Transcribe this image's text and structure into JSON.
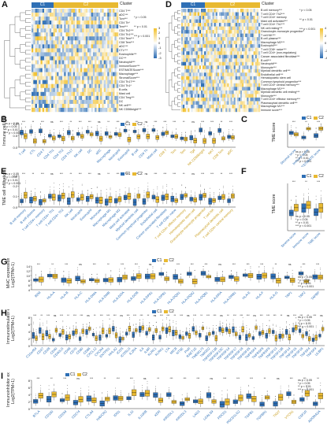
{
  "colors": {
    "C1": "#2e6fb5",
    "C2": "#e8b931",
    "heat_high": "#f2c12e",
    "heat_low": "#2b6cb3",
    "heat_mid": "#ffffff"
  },
  "legend": {
    "title": "",
    "items": [
      "C1",
      "C2"
    ]
  },
  "significance_key": [
    "* p < 0.05",
    "** p < 0.01",
    "*** p < 0.001"
  ],
  "significance_key_ns": [
    "ns p > 0.05",
    "* p < 0.05",
    "** p < 0.01",
    "*** p < 0.001"
  ],
  "panels": {
    "A": {
      "label": "A",
      "cluster_title": "Cluster",
      "cluster_labels": [
        "C1",
        "C2"
      ],
      "rows": [
        "CD4 T***",
        "aDC***",
        "Tcm***",
        "CD4 Th*",
        "Tem***",
        "CD4 Th2***",
        "CD4 Th1***",
        "CD4 Tem***",
        "CD8 Tem***",
        "aDC***",
        "CTL***",
        "Eosinophils***",
        "DC***",
        "Neutrophil***",
        "ImmuneScore***",
        "ESTIMATEScore***",
        "Macrophage***",
        "StromalScore***",
        "CD4 Th17***",
        "CD4 Th1*",
        "B cells",
        "Mast cell",
        "CD4 Treg***",
        "DC",
        "NK cell***",
        "NK CD56bright***"
      ],
      "scale": [
        "3",
        "2",
        "1",
        "0",
        "-1",
        "-2",
        "-3"
      ]
    },
    "B": {
      "label": "B",
      "ylabel": "Immune cell infiltration",
      "yticks": [
        "1.0",
        "0.5",
        "0.0"
      ],
      "categories": [
        "T cell",
        "CTL",
        "CD4 T",
        "CD4 Th1",
        "CD4 Th2",
        "CD4 Th17",
        "NK cell",
        "DC",
        "aDC",
        "Macrophage",
        "Neutrophil",
        "Eosinophil",
        "B cell",
        "CD4 Th",
        "Mast cell",
        "CD8 T",
        "Tcm",
        "Tem",
        "Tgd",
        "NK CD56bright",
        "NKT",
        "CD8 Tcm",
        "pDC"
      ],
      "highlight": [
        false,
        false,
        false,
        false,
        false,
        false,
        false,
        false,
        false,
        false,
        false,
        false,
        false,
        false,
        false,
        true,
        true,
        true,
        true,
        true,
        true,
        true,
        true
      ]
    },
    "C": {
      "label": "C",
      "ylabel": "TME score",
      "categories": [
        "Stromal score",
        "Immune score",
        "ESTIMATE score"
      ]
    },
    "D": {
      "label": "D",
      "cluster_title": "Cluster",
      "cluster_labels": [
        "C1",
        "C2"
      ],
      "rows": [
        "B cell memory***",
        "T cell CD4+ Th2***",
        "T cell CD4+ memory",
        "Mast cell activated***",
        "T cell CD4+ Th1***",
        "NK cell resting***",
        "Granulocyte-monocyte progenitor*",
        "T cell NK***",
        "B cell plasma***",
        "Macrophage M2***",
        "Eosinophil***",
        "T cell CD8+ naive***",
        "T cell CD4+ (non-regulatory)",
        "Cancer associated fibroblast***",
        "B cell***",
        "Neutrophil***",
        "Monocyte***",
        "Myeloid dendritic cell***",
        "Endothelial cell***",
        "Hematopoietic stem cell",
        "Common lymphoid progenitor***",
        "T cell CD4+ central memory***",
        "Macrophage M1***",
        "Myeloid dendritic cell resting***",
        "Monocyte***",
        "T cell CD4+ effector memory***",
        "Plasmacytoid dendritic cell***",
        "Macrophage M1***",
        "Immune score***"
      ],
      "scale": [
        "4",
        "2",
        "0",
        "-2",
        "-4"
      ]
    },
    "E": {
      "label": "E",
      "ylabel": "TME cell infiltration",
      "yticks": [
        "0.3",
        "0.2",
        "0.1",
        "0.0"
      ],
      "categories": [
        "B cell memory",
        "B cell plasma",
        "T cell CD4+ memory",
        "T cell CD4+ Th1",
        "T cell CD4+ Th2",
        "NK cell",
        "Neutrophil",
        "Eosinophil",
        "Monocyte",
        "Macrophage M1",
        "Macrophage M2",
        "Mast cell activated",
        "Myeloid dendritic cell",
        "Common lymphoid progenitor",
        "Endothelial cell",
        "Cancer associated fibroblast",
        "T cell CD8+ naive",
        "T cell CD4+ effector memory",
        "Hematopoietic stem cell",
        "Granulocyte-monocyte progenitor",
        "T cell NK",
        "Plasmacytoid dendritic cell",
        "T cell CD4+ central memory"
      ],
      "highlight": [
        false,
        false,
        false,
        false,
        false,
        false,
        false,
        false,
        false,
        false,
        false,
        false,
        false,
        false,
        false,
        false,
        false,
        true,
        true,
        true,
        true,
        true,
        true
      ]
    },
    "F": {
      "label": "F",
      "ylabel": "TME score",
      "categories": [
        "Stroma score",
        "Immune score",
        "TME score"
      ]
    },
    "G": {
      "label": "G",
      "ylabel": "MHC expression\nLog2(TPM+1)",
      "yticks": [
        "14",
        "12",
        "10",
        "8",
        "6",
        "4"
      ],
      "categories": [
        "B2M",
        "HLA-A",
        "HLA-B",
        "HLA-C",
        "HLA-DMA",
        "HLA-DMB",
        "HLA-DOA",
        "HLA-DOB",
        "HLA-DPA1",
        "HLA-DPB1",
        "HLA-DQA1",
        "HLA-DQA2",
        "HLA-DQB1",
        "HLA-DRA",
        "HLA-DRB1",
        "HLA-E",
        "HLA-F",
        "HLA-G",
        "TAP1",
        "TAP2",
        "TAPBP"
      ]
    },
    "H": {
      "label": "H",
      "ylabel": "Immunostimulator expression\nLog2(TPM+1)",
      "yticks": [
        "8",
        "6",
        "4",
        "2",
        "0"
      ],
      "categories": [
        "C10orf54",
        "CD27",
        "CD28",
        "CD40",
        "CD40LG",
        "CD48",
        "CD70",
        "CD80",
        "CD86",
        "CXCL12",
        "CXCR4",
        "ENTPD1",
        "HHLA2",
        "ICOS",
        "ICOSLG",
        "IL2RA",
        "IL6",
        "IL6R",
        "KLRC1",
        "KLRK1",
        "LTA",
        "MICB",
        "NT5E",
        "PVR",
        "RAET1E",
        "TMEM173",
        "TMIGD2",
        "TNFRSF13B",
        "TNFRSF13C",
        "TNFRSF14",
        "TNFRSF17",
        "TNFRSF18",
        "TNFRSF25",
        "TNFRSF4",
        "TNFRSF8",
        "TNFRSF9",
        "TNFSF13",
        "TNFSF13B",
        "TNFSF14",
        "TNFSF15",
        "TNFSF18",
        "TNFSF4",
        "TNFSF9",
        "ULBP1"
      ]
    },
    "I": {
      "label": "I",
      "ylabel": "Immunoinhibitor expression\nLog2(TPM+1)",
      "yticks": [
        "8",
        "6",
        "4",
        "2",
        "0"
      ],
      "categories": [
        "BTLA",
        "CD160",
        "CD244",
        "CD274",
        "CTLA4",
        "HAVCR2",
        "IDO1",
        "IL10",
        "IL10RB",
        "KDR",
        "KIR2DL1",
        "KIR2DL3",
        "LAG3",
        "LGALS9",
        "PDCD1",
        "PDCD1LG2",
        "TGFB1",
        "TGFBR1",
        "TIGIT",
        "VTCN1",
        "CSF1R",
        "ADORA2A"
      ],
      "highlight": [
        false,
        false,
        false,
        false,
        false,
        false,
        false,
        false,
        false,
        false,
        false,
        false,
        false,
        false,
        false,
        false,
        false,
        false,
        true,
        true,
        false,
        false
      ]
    }
  }
}
